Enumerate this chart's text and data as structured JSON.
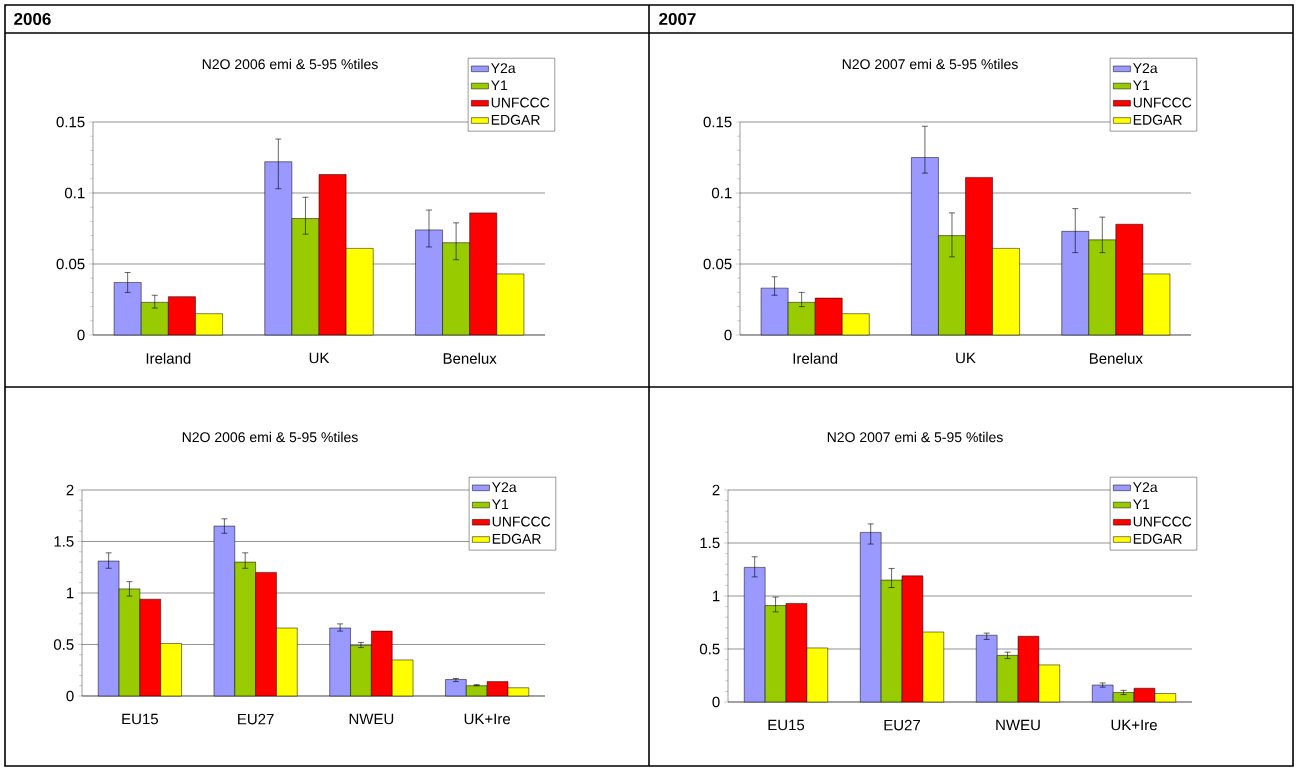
{
  "chart_data": [
    {
      "type": "bar",
      "title": "N2O  2006 emi & 5-95 %tiles",
      "annotations": [
        "2006"
      ],
      "categories": [
        "Ireland",
        "UK",
        "Benelux"
      ],
      "series": [
        {
          "name": "Y2a",
          "color": "#9999ff",
          "values": [
            0.037,
            0.122,
            0.074
          ],
          "errors": [
            [
              0.03,
              0.044
            ],
            [
              0.103,
              0.138
            ],
            [
              0.062,
              0.088
            ]
          ]
        },
        {
          "name": "Y1",
          "color": "#99cc00",
          "values": [
            0.023,
            0.082,
            0.065
          ],
          "errors": [
            [
              0.019,
              0.028
            ],
            [
              0.071,
              0.097
            ],
            [
              0.053,
              0.079
            ]
          ]
        },
        {
          "name": "UNFCCC",
          "color": "#ff0000",
          "values": [
            0.027,
            0.113,
            0.086
          ]
        },
        {
          "name": "EDGAR",
          "color": "#ffff00",
          "values": [
            0.015,
            0.061,
            0.043
          ]
        }
      ],
      "ylim": [
        0,
        0.15
      ],
      "yticks": [
        0,
        0.05,
        0.1,
        0.15
      ],
      "grid": "y",
      "legend": "top right"
    },
    {
      "type": "bar",
      "title": "N2O  2007 emi & 5-95 %tiles",
      "annotations": [
        "2007"
      ],
      "categories": [
        "Ireland",
        "UK",
        "Benelux"
      ],
      "series": [
        {
          "name": "Y2a",
          "color": "#9999ff",
          "values": [
            0.033,
            0.125,
            0.073
          ],
          "errors": [
            [
              0.028,
              0.041
            ],
            [
              0.114,
              0.147
            ],
            [
              0.058,
              0.089
            ]
          ]
        },
        {
          "name": "Y1",
          "color": "#99cc00",
          "values": [
            0.023,
            0.07,
            0.067
          ],
          "errors": [
            [
              0.02,
              0.03
            ],
            [
              0.055,
              0.086
            ],
            [
              0.058,
              0.083
            ]
          ]
        },
        {
          "name": "UNFCCC",
          "color": "#ff0000",
          "values": [
            0.026,
            0.111,
            0.078
          ]
        },
        {
          "name": "EDGAR",
          "color": "#ffff00",
          "values": [
            0.015,
            0.061,
            0.043
          ]
        }
      ],
      "ylim": [
        0,
        0.15
      ],
      "yticks": [
        0,
        0.05,
        0.1,
        0.15
      ],
      "grid": "y",
      "legend": "top right"
    },
    {
      "type": "bar",
      "title": "N2O  2006 emi & 5-95 %tiles",
      "categories": [
        "EU15",
        "EU27",
        "NWEU",
        "UK+Ire"
      ],
      "series": [
        {
          "name": "Y2a",
          "color": "#9999ff",
          "values": [
            1.31,
            1.65,
            0.66,
            0.16
          ],
          "errors": [
            [
              1.24,
              1.39
            ],
            [
              1.58,
              1.72
            ],
            [
              0.63,
              0.7
            ],
            [
              0.14,
              0.17
            ]
          ]
        },
        {
          "name": "Y1",
          "color": "#99cc00",
          "values": [
            1.04,
            1.3,
            0.49,
            0.1
          ],
          "errors": [
            [
              0.97,
              1.11
            ],
            [
              1.24,
              1.39
            ],
            [
              0.47,
              0.52
            ],
            [
              0.1,
              0.11
            ]
          ]
        },
        {
          "name": "UNFCCC",
          "color": "#ff0000",
          "values": [
            0.94,
            1.2,
            0.63,
            0.14
          ]
        },
        {
          "name": "EDGAR",
          "color": "#ffff00",
          "values": [
            0.51,
            0.66,
            0.35,
            0.08
          ]
        }
      ],
      "ylim": [
        0,
        2
      ],
      "yticks": [
        0,
        0.5,
        1,
        1.5,
        2
      ],
      "grid": "y",
      "legend": "top right"
    },
    {
      "type": "bar",
      "title": "N2O 2007 emi & 5-95 %tiles",
      "categories": [
        "EU15",
        "EU27",
        "NWEU",
        "UK+Ire"
      ],
      "series": [
        {
          "name": "Y2a",
          "color": "#9999ff",
          "values": [
            1.27,
            1.6,
            0.63,
            0.16
          ],
          "errors": [
            [
              1.18,
              1.37
            ],
            [
              1.49,
              1.68
            ],
            [
              0.59,
              0.65
            ],
            [
              0.14,
              0.18
            ]
          ]
        },
        {
          "name": "Y1",
          "color": "#99cc00",
          "values": [
            0.91,
            1.15,
            0.44,
            0.09
          ],
          "errors": [
            [
              0.85,
              0.99
            ],
            [
              1.08,
              1.26
            ],
            [
              0.41,
              0.47
            ],
            [
              0.07,
              0.11
            ]
          ]
        },
        {
          "name": "UNFCCC",
          "color": "#ff0000",
          "values": [
            0.93,
            1.19,
            0.62,
            0.13
          ]
        },
        {
          "name": "EDGAR",
          "color": "#ffff00",
          "values": [
            0.51,
            0.66,
            0.35,
            0.08
          ]
        }
      ],
      "ylim": [
        0,
        2
      ],
      "yticks": [
        0,
        0.5,
        1,
        1.5,
        2
      ],
      "grid": "y",
      "legend": "top right"
    }
  ]
}
